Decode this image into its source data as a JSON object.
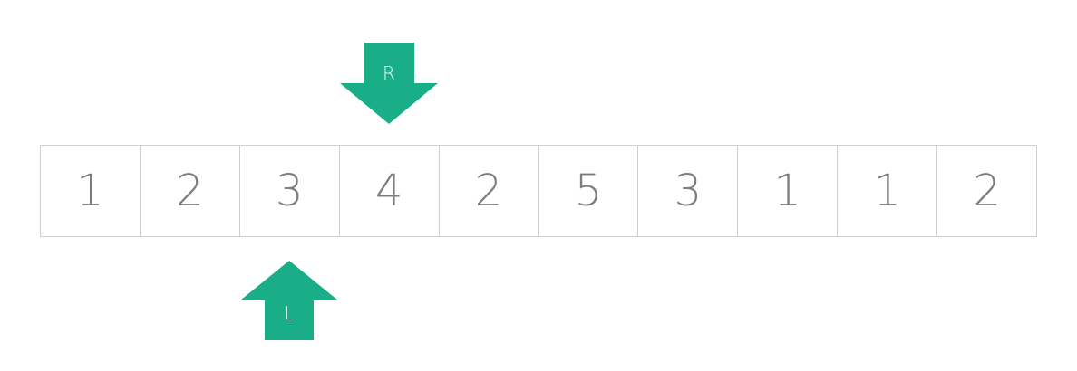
{
  "array": {
    "values": [
      "1",
      "2",
      "3",
      "4",
      "2",
      "5",
      "3",
      "1",
      "1",
      "2"
    ]
  },
  "pointers": {
    "right": {
      "label": "R",
      "index": 3,
      "direction": "down"
    },
    "left": {
      "label": "L",
      "index": 2,
      "direction": "up"
    }
  },
  "colors": {
    "pointer": "#1aae88",
    "pointer_label": "#e8f6f1",
    "cell_border": "#cfcfcf",
    "cell_text": "#7d7d7d",
    "background": "#ffffff"
  }
}
